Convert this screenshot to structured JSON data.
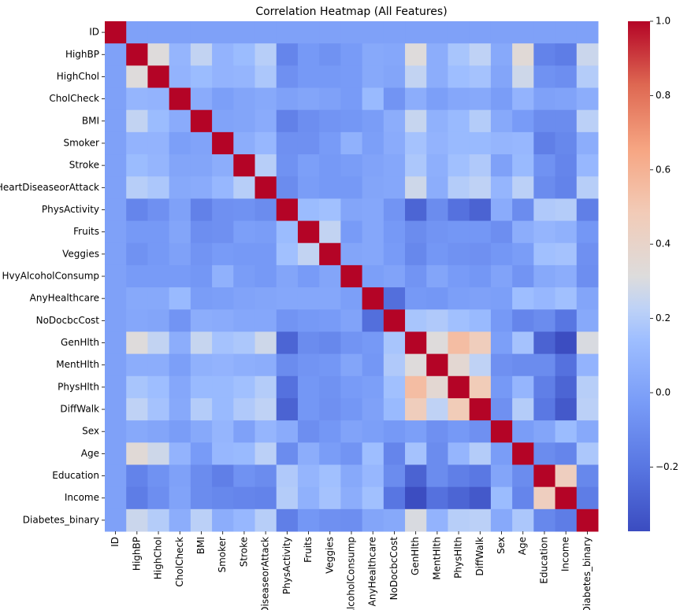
{
  "chart_data": {
    "type": "heatmap",
    "title": "Correlation Heatmap (All Features)",
    "colormap": "coolwarm",
    "labels": [
      "ID",
      "HighBP",
      "HighChol",
      "CholCheck",
      "BMI",
      "Smoker",
      "Stroke",
      "HeartDiseaseorAttack",
      "PhysActivity",
      "Fruits",
      "Veggies",
      "HvyAlcoholConsump",
      "AnyHealthcare",
      "NoDocbcCost",
      "GenHlth",
      "MentHlth",
      "PhysHlth",
      "DiffWalk",
      "Sex",
      "Age",
      "Education",
      "Income",
      "Diabetes_binary"
    ],
    "matrix": [
      [
        1,
        0,
        0,
        0,
        0,
        0,
        0,
        0,
        0,
        0,
        0,
        0,
        0,
        0,
        0,
        0,
        0,
        0,
        0,
        0,
        0,
        0,
        0
      ],
      [
        0,
        1,
        0.32,
        0.1,
        0.24,
        0.09,
        0.13,
        0.21,
        -0.13,
        -0.04,
        -0.07,
        -0.03,
        0.04,
        0.03,
        0.32,
        0.06,
        0.17,
        0.23,
        0.04,
        0.34,
        -0.14,
        -0.17,
        0.26
      ],
      [
        0,
        0.32,
        1,
        0.09,
        0.13,
        0.09,
        0.1,
        0.18,
        -0.08,
        -0.04,
        -0.04,
        -0.03,
        0.04,
        0.02,
        0.24,
        0.06,
        0.14,
        0.16,
        0.02,
        0.27,
        -0.07,
        -0.09,
        0.2
      ],
      [
        0,
        0.1,
        0.09,
        1,
        0.05,
        -0.01,
        0.02,
        0.04,
        0.0,
        0.02,
        0.0,
        -0.03,
        0.12,
        -0.06,
        0.06,
        -0.01,
        0.03,
        0.04,
        -0.02,
        0.09,
        0.0,
        0.01,
        0.06
      ],
      [
        0,
        0.24,
        0.13,
        0.05,
        1,
        0.01,
        0.02,
        0.05,
        -0.15,
        -0.09,
        -0.06,
        -0.05,
        -0.02,
        0.06,
        0.25,
        0.08,
        0.12,
        0.2,
        0.04,
        -0.03,
        -0.1,
        -0.1,
        0.22
      ],
      [
        0,
        0.09,
        0.09,
        -0.01,
        0.01,
        1,
        0.06,
        0.11,
        -0.08,
        -0.08,
        -0.03,
        0.08,
        -0.01,
        0.05,
        0.16,
        0.09,
        0.12,
        0.12,
        0.1,
        0.11,
        -0.16,
        -0.12,
        0.06
      ],
      [
        0,
        0.13,
        0.1,
        0.02,
        0.02,
        0.06,
        1,
        0.21,
        -0.07,
        -0.01,
        -0.04,
        -0.02,
        0.01,
        0.03,
        0.18,
        0.07,
        0.15,
        0.19,
        0.0,
        0.12,
        -0.07,
        -0.13,
        0.11
      ],
      [
        0,
        0.21,
        0.18,
        0.04,
        0.05,
        0.11,
        0.21,
        1,
        -0.1,
        -0.02,
        -0.04,
        -0.04,
        0.02,
        0.03,
        0.27,
        0.06,
        0.2,
        0.23,
        0.1,
        0.22,
        -0.1,
        -0.14,
        0.21
      ],
      [
        0,
        -0.13,
        -0.08,
        0.0,
        -0.15,
        -0.08,
        -0.07,
        -0.1,
        1,
        0.13,
        0.15,
        0.02,
        0.03,
        -0.06,
        -0.27,
        -0.1,
        -0.22,
        -0.28,
        0.05,
        -0.1,
        0.19,
        0.2,
        -0.16
      ],
      [
        0,
        -0.04,
        -0.04,
        0.02,
        -0.09,
        -0.08,
        -0.01,
        -0.02,
        0.13,
        1,
        0.24,
        -0.03,
        0.03,
        -0.04,
        -0.1,
        -0.06,
        -0.05,
        -0.05,
        -0.09,
        0.06,
        0.1,
        0.08,
        -0.05
      ],
      [
        0,
        -0.07,
        -0.04,
        0.0,
        -0.06,
        -0.03,
        -0.04,
        -0.04,
        0.15,
        0.24,
        1,
        0.02,
        0.03,
        -0.03,
        -0.12,
        -0.05,
        -0.07,
        -0.08,
        -0.05,
        -0.02,
        0.15,
        0.16,
        -0.08
      ],
      [
        0,
        -0.03,
        -0.03,
        -0.03,
        -0.05,
        0.08,
        -0.02,
        -0.04,
        0.02,
        -0.03,
        0.02,
        1,
        -0.01,
        0.01,
        -0.06,
        0.02,
        -0.03,
        -0.05,
        0.01,
        -0.06,
        0.04,
        0.06,
        -0.09
      ],
      [
        0,
        0.04,
        0.04,
        0.12,
        -0.02,
        -0.01,
        0.01,
        0.02,
        0.03,
        0.03,
        0.03,
        -0.01,
        1,
        -0.23,
        -0.04,
        -0.05,
        -0.01,
        0.0,
        -0.01,
        0.14,
        0.11,
        0.15,
        0.02
      ],
      [
        0,
        0.03,
        0.02,
        -0.06,
        0.06,
        0.05,
        0.03,
        0.03,
        -0.06,
        -0.04,
        -0.03,
        0.01,
        -0.23,
        1,
        0.17,
        0.19,
        0.15,
        0.12,
        -0.04,
        -0.13,
        -0.1,
        -0.2,
        0.04
      ],
      [
        0,
        0.32,
        0.24,
        0.06,
        0.25,
        0.16,
        0.18,
        0.27,
        -0.27,
        -0.1,
        -0.12,
        -0.06,
        -0.04,
        0.17,
        1,
        0.32,
        0.55,
        0.46,
        -0.01,
        0.16,
        -0.28,
        -0.37,
        0.3
      ],
      [
        0,
        0.06,
        0.06,
        -0.01,
        0.08,
        0.09,
        0.07,
        0.06,
        -0.1,
        -0.06,
        -0.05,
        0.02,
        -0.05,
        0.19,
        0.32,
        1,
        0.36,
        0.23,
        -0.08,
        -0.1,
        -0.1,
        -0.22,
        0.09
      ],
      [
        0,
        0.17,
        0.14,
        0.03,
        0.12,
        0.12,
        0.15,
        0.2,
        -0.22,
        -0.05,
        -0.07,
        -0.03,
        -0.01,
        0.15,
        0.55,
        0.36,
        1,
        0.48,
        -0.04,
        0.1,
        -0.16,
        -0.27,
        0.21
      ],
      [
        0,
        0.23,
        0.16,
        0.04,
        0.2,
        0.12,
        0.19,
        0.23,
        -0.28,
        -0.05,
        -0.08,
        -0.05,
        0.0,
        0.12,
        0.46,
        0.23,
        0.48,
        1,
        -0.08,
        0.2,
        -0.19,
        -0.32,
        0.22
      ],
      [
        0,
        0.04,
        0.02,
        -0.02,
        0.04,
        0.1,
        0.0,
        0.1,
        0.05,
        -0.09,
        -0.05,
        0.01,
        -0.01,
        -0.04,
        -0.01,
        -0.08,
        -0.04,
        -0.08,
        1,
        -0.02,
        0.02,
        0.13,
        0.04
      ],
      [
        0,
        0.34,
        0.27,
        0.09,
        -0.03,
        0.11,
        0.12,
        0.22,
        -0.1,
        0.06,
        -0.02,
        -0.06,
        0.14,
        -0.13,
        0.16,
        -0.1,
        0.1,
        0.2,
        -0.02,
        1,
        -0.1,
        -0.13,
        0.18
      ],
      [
        0,
        -0.14,
        -0.07,
        0.0,
        -0.1,
        -0.16,
        -0.07,
        -0.1,
        0.19,
        0.1,
        0.15,
        0.04,
        0.11,
        -0.1,
        -0.28,
        -0.1,
        -0.16,
        -0.19,
        0.02,
        -0.1,
        1,
        0.45,
        -0.12
      ],
      [
        0,
        -0.17,
        -0.09,
        0.01,
        -0.1,
        -0.12,
        -0.13,
        -0.14,
        0.2,
        0.08,
        0.16,
        0.06,
        0.15,
        -0.2,
        -0.37,
        -0.22,
        -0.27,
        -0.32,
        0.13,
        -0.13,
        0.45,
        1,
        -0.17
      ],
      [
        0,
        0.26,
        0.2,
        0.06,
        0.22,
        0.06,
        0.11,
        0.21,
        -0.16,
        -0.05,
        -0.08,
        -0.09,
        0.02,
        0.04,
        0.3,
        0.09,
        0.21,
        0.22,
        0.04,
        0.18,
        -0.12,
        -0.17,
        1
      ]
    ],
    "zlim": [
      -0.373,
      1
    ],
    "zticks": [
      {
        "value": -0.2,
        "label": "−0.2"
      },
      {
        "value": 0,
        "label": "0.0"
      },
      0.2,
      0.4,
      0.6,
      0.8,
      {
        "value": 1,
        "label": "1.0"
      }
    ]
  }
}
